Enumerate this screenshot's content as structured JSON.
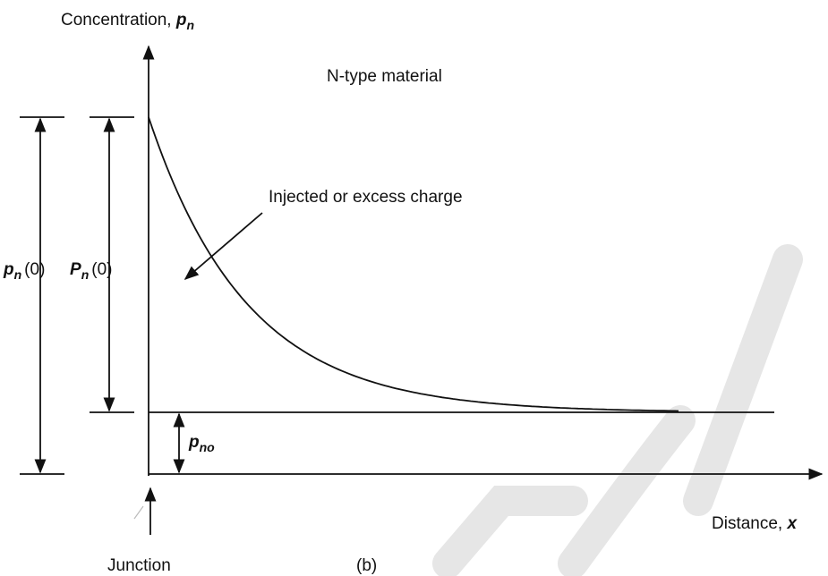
{
  "y_axis_label": {
    "text": "Concentration,",
    "symbol": "p",
    "subscript": "n"
  },
  "title": "N-type material",
  "annotation": "Injected or excess charge",
  "x_axis_label": {
    "text": "Distance,",
    "symbol": "x"
  },
  "junction_label": "Junction",
  "caption": "(b)",
  "dimensions": {
    "total": {
      "symbol": "p",
      "subscript": "n",
      "argument": "(0)"
    },
    "excess": {
      "symbol": "P",
      "subscript": "n",
      "argument": "(0)"
    },
    "equilibrium": {
      "symbol": "p",
      "subscript": "no"
    }
  }
}
